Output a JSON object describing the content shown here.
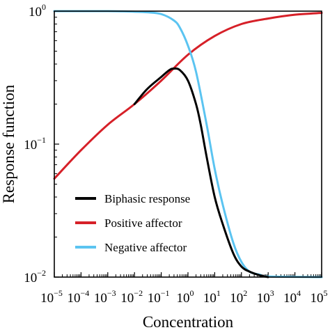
{
  "chart_data": {
    "type": "line",
    "xlabel": "Concentration",
    "ylabel": "Response function",
    "x_scale": "log",
    "y_scale": "log",
    "xlim": [
      1e-05,
      100000
    ],
    "ylim": [
      0.01,
      1
    ],
    "x_ticks": [
      {
        "base": "10",
        "exp": "−5",
        "value": 1e-05
      },
      {
        "base": "10",
        "exp": "−4",
        "value": 0.0001
      },
      {
        "base": "10",
        "exp": "−3",
        "value": 0.001
      },
      {
        "base": "10",
        "exp": "−2",
        "value": 0.01
      },
      {
        "base": "10",
        "exp": "−1",
        "value": 0.1
      },
      {
        "base": "10",
        "exp": "0",
        "value": 1
      },
      {
        "base": "10",
        "exp": "1",
        "value": 10
      },
      {
        "base": "10",
        "exp": "2",
        "value": 100
      },
      {
        "base": "10",
        "exp": "3",
        "value": 1000
      },
      {
        "base": "10",
        "exp": "4",
        "value": 10000
      },
      {
        "base": "10",
        "exp": "5",
        "value": 100000
      }
    ],
    "y_ticks": [
      {
        "base": "10",
        "exp": "0",
        "value": 1
      },
      {
        "base": "10",
        "exp": "−1",
        "value": 0.1
      },
      {
        "base": "10",
        "exp": "−2",
        "value": 0.01
      }
    ],
    "legend_position": "lower-left",
    "series": [
      {
        "name": "Biphasic response",
        "color": "#000000",
        "x": [
          0.01,
          0.03,
          0.1,
          0.2,
          0.3,
          0.5,
          1,
          2,
          3,
          5,
          10,
          20,
          50,
          100,
          200,
          500,
          1000
        ],
        "y": [
          0.2,
          0.26,
          0.32,
          0.36,
          0.37,
          0.36,
          0.3,
          0.2,
          0.14,
          0.08,
          0.04,
          0.025,
          0.015,
          0.012,
          0.011,
          0.0103,
          0.01
        ]
      },
      {
        "name": "Positive affector",
        "color": "#d62028",
        "x": [
          1e-05,
          0.0001,
          0.001,
          0.01,
          0.1,
          1,
          10,
          100,
          1000,
          10000,
          100000
        ],
        "y": [
          0.055,
          0.09,
          0.14,
          0.2,
          0.3,
          0.47,
          0.65,
          0.8,
          0.88,
          0.94,
          0.97
        ]
      },
      {
        "name": "Negative affector",
        "color": "#5bc4f1",
        "x": [
          1e-05,
          0.001,
          0.01,
          0.03,
          0.1,
          0.3,
          0.5,
          1,
          2,
          5,
          10,
          20,
          50,
          100,
          200,
          500,
          1000,
          100000
        ],
        "y": [
          1,
          1,
          0.99,
          0.98,
          0.95,
          0.85,
          0.75,
          0.55,
          0.35,
          0.14,
          0.065,
          0.035,
          0.018,
          0.013,
          0.011,
          0.0104,
          0.0101,
          0.01
        ]
      }
    ]
  }
}
